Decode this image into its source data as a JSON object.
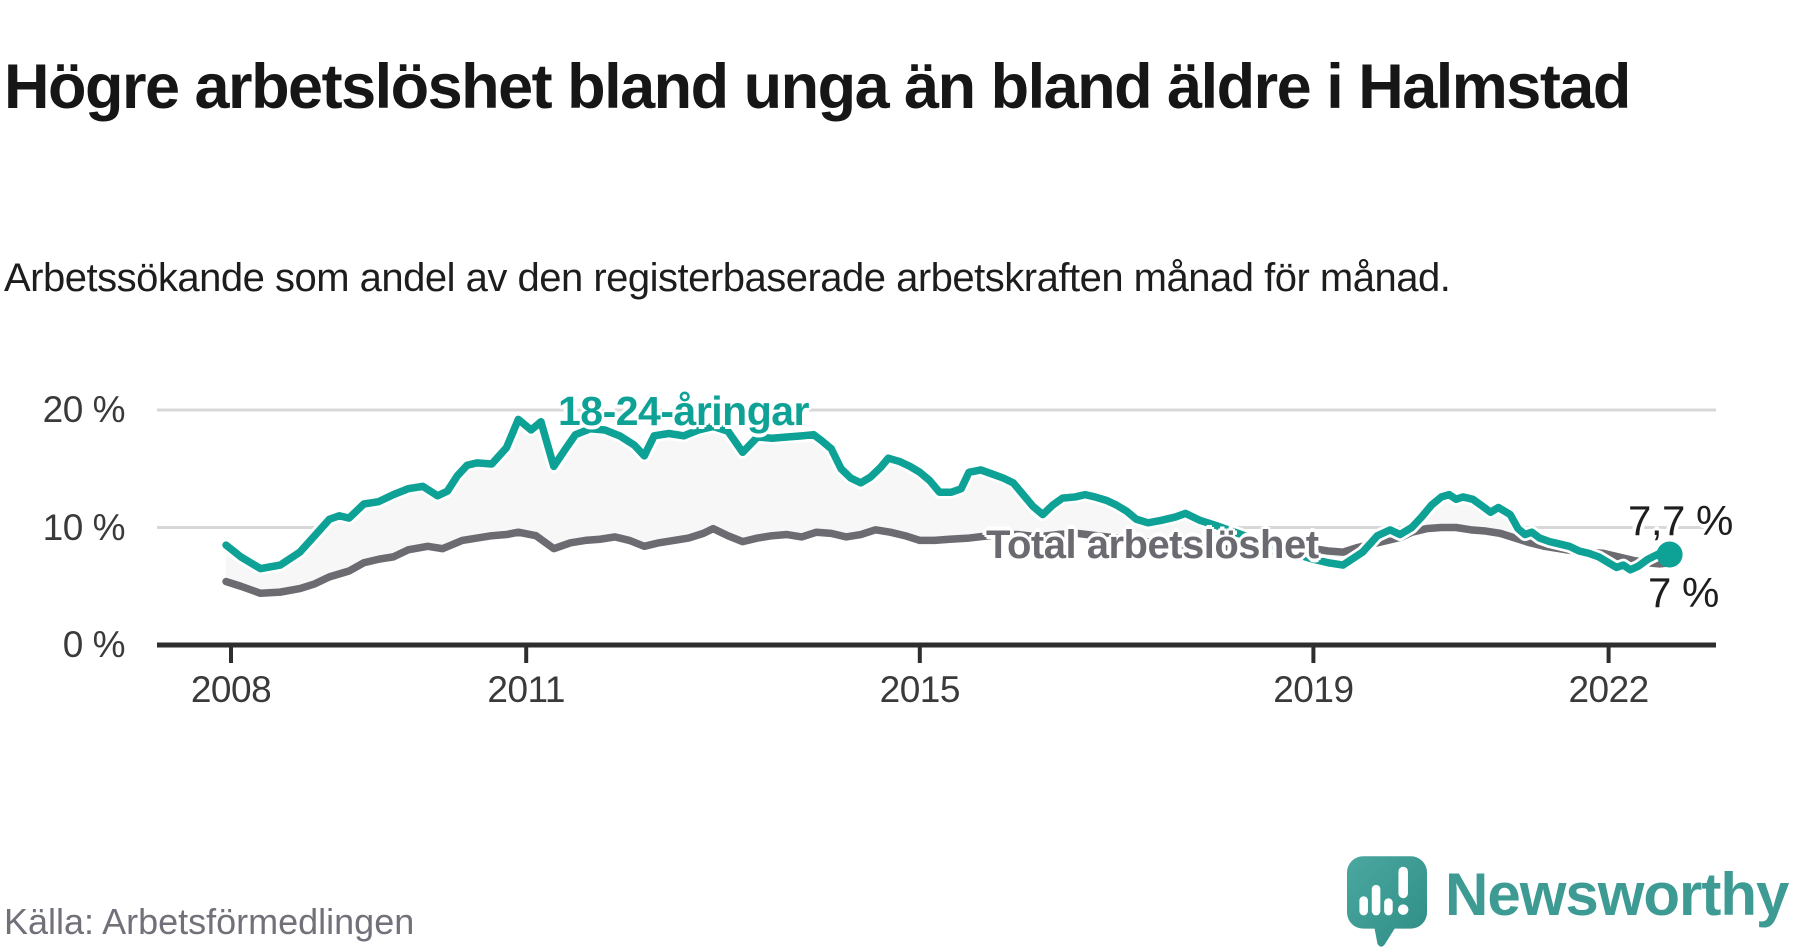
{
  "header": {
    "title": "Högre arbetslöshet bland unga än bland äldre i Halmstad",
    "subtitle": "Arbetssökande som andel av den registerbaserade arbetskraften månad för månad."
  },
  "footer": {
    "source": "Källa: Arbetsförmedlingen",
    "brand": "Newsworthy",
    "logo_icon": "speech-bubble-bar-chart-icon"
  },
  "colors": {
    "youth_line": "#0ea196",
    "total_line": "#6b6b71",
    "axis": "#2e2e2e",
    "gridline": "#d8d8d8",
    "area_fill": "#f7f7f7",
    "text_dark": "#161616",
    "text_gray": "#71717a",
    "brand_teal": "#3e9b94"
  },
  "chart_data": {
    "type": "line",
    "title": "Högre arbetslöshet bland unga än bland äldre i Halmstad",
    "subtitle": "Arbetssökande som andel av den registerbaserade arbetskraften månad för månad.",
    "unit": "%",
    "grid": "horizontal",
    "legend": "inline-labels",
    "area_fill_between_series": "#f7f7f7",
    "x_axis": {
      "ticks": [
        2008,
        2011,
        2015,
        2019,
        2022
      ],
      "tick_labels": [
        "2008",
        "2011",
        "2015",
        "2019",
        "2022"
      ],
      "range": [
        2007.7,
        2022.9
      ]
    },
    "y_axis": {
      "ticks": [
        0,
        10,
        20
      ],
      "tick_labels": [
        "0 %",
        "10 %",
        "20 %"
      ],
      "range": [
        0,
        22
      ]
    },
    "series": [
      {
        "name": "18-24-åringar",
        "color": "#0ea196",
        "end_label": "7,7 %",
        "end_value": 7.7,
        "points": [
          [
            2007.95,
            8.5
          ],
          [
            2008.1,
            7.5
          ],
          [
            2008.3,
            6.5
          ],
          [
            2008.5,
            6.8
          ],
          [
            2008.7,
            7.9
          ],
          [
            2008.85,
            9.3
          ],
          [
            2009.0,
            10.7
          ],
          [
            2009.1,
            11.0
          ],
          [
            2009.2,
            10.8
          ],
          [
            2009.35,
            12.0
          ],
          [
            2009.5,
            12.2
          ],
          [
            2009.65,
            12.8
          ],
          [
            2009.8,
            13.3
          ],
          [
            2009.95,
            13.5
          ],
          [
            2010.1,
            12.7
          ],
          [
            2010.2,
            13.1
          ],
          [
            2010.3,
            14.4
          ],
          [
            2010.4,
            15.3
          ],
          [
            2010.5,
            15.5
          ],
          [
            2010.65,
            15.4
          ],
          [
            2010.8,
            16.8
          ],
          [
            2010.92,
            19.2
          ],
          [
            2011.05,
            18.3
          ],
          [
            2011.15,
            19.0
          ],
          [
            2011.28,
            15.2
          ],
          [
            2011.4,
            16.7
          ],
          [
            2011.5,
            17.9
          ],
          [
            2011.65,
            18.4
          ],
          [
            2011.8,
            18.3
          ],
          [
            2011.95,
            17.8
          ],
          [
            2012.1,
            17.0
          ],
          [
            2012.2,
            16.1
          ],
          [
            2012.3,
            17.8
          ],
          [
            2012.45,
            18.0
          ],
          [
            2012.6,
            17.8
          ],
          [
            2012.75,
            18.3
          ],
          [
            2012.9,
            18.6
          ],
          [
            2013.05,
            18.2
          ],
          [
            2013.2,
            16.4
          ],
          [
            2013.35,
            17.7
          ],
          [
            2013.5,
            17.6
          ],
          [
            2013.65,
            17.7
          ],
          [
            2013.8,
            17.8
          ],
          [
            2013.92,
            17.9
          ],
          [
            2014.0,
            17.4
          ],
          [
            2014.1,
            16.7
          ],
          [
            2014.2,
            15.0
          ],
          [
            2014.3,
            14.2
          ],
          [
            2014.4,
            13.8
          ],
          [
            2014.5,
            14.3
          ],
          [
            2014.6,
            15.1
          ],
          [
            2014.68,
            15.9
          ],
          [
            2014.8,
            15.6
          ],
          [
            2014.9,
            15.2
          ],
          [
            2015.0,
            14.7
          ],
          [
            2015.1,
            14.0
          ],
          [
            2015.2,
            13.0
          ],
          [
            2015.32,
            13.0
          ],
          [
            2015.42,
            13.3
          ],
          [
            2015.5,
            14.7
          ],
          [
            2015.62,
            14.9
          ],
          [
            2015.72,
            14.6
          ],
          [
            2015.85,
            14.2
          ],
          [
            2015.95,
            13.8
          ],
          [
            2016.05,
            12.8
          ],
          [
            2016.15,
            11.8
          ],
          [
            2016.25,
            11.1
          ],
          [
            2016.35,
            11.9
          ],
          [
            2016.45,
            12.5
          ],
          [
            2016.58,
            12.6
          ],
          [
            2016.68,
            12.8
          ],
          [
            2016.78,
            12.6
          ],
          [
            2016.9,
            12.3
          ],
          [
            2017.0,
            11.9
          ],
          [
            2017.1,
            11.4
          ],
          [
            2017.2,
            10.7
          ],
          [
            2017.32,
            10.4
          ],
          [
            2017.45,
            10.6
          ],
          [
            2017.6,
            10.9
          ],
          [
            2017.7,
            11.2
          ],
          [
            2017.85,
            10.6
          ],
          [
            2018.0,
            10.2
          ],
          [
            2018.2,
            9.6
          ],
          [
            2018.4,
            9.0
          ],
          [
            2018.6,
            8.4
          ],
          [
            2018.8,
            7.8
          ],
          [
            2019.0,
            7.3
          ],
          [
            2019.15,
            7.0
          ],
          [
            2019.3,
            6.8
          ],
          [
            2019.5,
            7.9
          ],
          [
            2019.65,
            9.3
          ],
          [
            2019.78,
            9.8
          ],
          [
            2019.88,
            9.4
          ],
          [
            2020.0,
            10.0
          ],
          [
            2020.1,
            10.9
          ],
          [
            2020.2,
            11.9
          ],
          [
            2020.3,
            12.6
          ],
          [
            2020.38,
            12.8
          ],
          [
            2020.45,
            12.4
          ],
          [
            2020.52,
            12.6
          ],
          [
            2020.62,
            12.4
          ],
          [
            2020.72,
            11.8
          ],
          [
            2020.8,
            11.3
          ],
          [
            2020.88,
            11.7
          ],
          [
            2021.0,
            11.1
          ],
          [
            2021.08,
            9.9
          ],
          [
            2021.15,
            9.4
          ],
          [
            2021.22,
            9.6
          ],
          [
            2021.3,
            9.1
          ],
          [
            2021.4,
            8.8
          ],
          [
            2021.5,
            8.6
          ],
          [
            2021.6,
            8.4
          ],
          [
            2021.7,
            8.0
          ],
          [
            2021.8,
            7.8
          ],
          [
            2021.9,
            7.5
          ],
          [
            2022.0,
            7.0
          ],
          [
            2022.08,
            6.6
          ],
          [
            2022.15,
            6.8
          ],
          [
            2022.22,
            6.4
          ],
          [
            2022.3,
            6.7
          ],
          [
            2022.4,
            7.3
          ],
          [
            2022.52,
            7.8
          ],
          [
            2022.62,
            7.7
          ]
        ]
      },
      {
        "name": "Total arbetslöshet",
        "color": "#6b6b71",
        "end_label": "7 %",
        "end_value": 7.0,
        "points": [
          [
            2007.95,
            5.4
          ],
          [
            2008.1,
            5.0
          ],
          [
            2008.3,
            4.4
          ],
          [
            2008.5,
            4.5
          ],
          [
            2008.7,
            4.8
          ],
          [
            2008.85,
            5.2
          ],
          [
            2009.0,
            5.8
          ],
          [
            2009.2,
            6.3
          ],
          [
            2009.35,
            7.0
          ],
          [
            2009.5,
            7.3
          ],
          [
            2009.65,
            7.5
          ],
          [
            2009.8,
            8.1
          ],
          [
            2010.0,
            8.4
          ],
          [
            2010.15,
            8.2
          ],
          [
            2010.35,
            8.9
          ],
          [
            2010.5,
            9.1
          ],
          [
            2010.65,
            9.3
          ],
          [
            2010.8,
            9.4
          ],
          [
            2010.92,
            9.6
          ],
          [
            2011.1,
            9.3
          ],
          [
            2011.28,
            8.2
          ],
          [
            2011.45,
            8.7
          ],
          [
            2011.6,
            8.9
          ],
          [
            2011.75,
            9.0
          ],
          [
            2011.9,
            9.2
          ],
          [
            2012.05,
            8.9
          ],
          [
            2012.2,
            8.4
          ],
          [
            2012.35,
            8.7
          ],
          [
            2012.5,
            8.9
          ],
          [
            2012.65,
            9.1
          ],
          [
            2012.8,
            9.5
          ],
          [
            2012.9,
            9.9
          ],
          [
            2013.05,
            9.3
          ],
          [
            2013.2,
            8.8
          ],
          [
            2013.35,
            9.1
          ],
          [
            2013.5,
            9.3
          ],
          [
            2013.65,
            9.4
          ],
          [
            2013.8,
            9.2
          ],
          [
            2013.95,
            9.6
          ],
          [
            2014.1,
            9.5
          ],
          [
            2014.25,
            9.2
          ],
          [
            2014.4,
            9.4
          ],
          [
            2014.55,
            9.8
          ],
          [
            2014.7,
            9.6
          ],
          [
            2014.85,
            9.3
          ],
          [
            2015.0,
            8.9
          ],
          [
            2015.15,
            8.9
          ],
          [
            2015.3,
            9.0
          ],
          [
            2015.5,
            9.1
          ],
          [
            2015.7,
            9.3
          ],
          [
            2015.85,
            9.4
          ],
          [
            2016.0,
            9.4
          ],
          [
            2016.2,
            9.2
          ],
          [
            2016.4,
            9.4
          ],
          [
            2016.6,
            9.5
          ],
          [
            2016.8,
            9.3
          ],
          [
            2017.0,
            9.1
          ],
          [
            2017.2,
            8.9
          ],
          [
            2017.4,
            8.7
          ],
          [
            2017.6,
            8.6
          ],
          [
            2017.8,
            8.4
          ],
          [
            2018.0,
            8.3
          ],
          [
            2018.2,
            8.1
          ],
          [
            2018.4,
            8.0
          ],
          [
            2018.6,
            8.0
          ],
          [
            2018.8,
            8.1
          ],
          [
            2019.0,
            8.2
          ],
          [
            2019.15,
            8.0
          ],
          [
            2019.3,
            7.9
          ],
          [
            2019.45,
            8.3
          ],
          [
            2019.6,
            8.6
          ],
          [
            2019.75,
            8.9
          ],
          [
            2019.9,
            9.2
          ],
          [
            2020.0,
            9.6
          ],
          [
            2020.15,
            9.9
          ],
          [
            2020.3,
            10.0
          ],
          [
            2020.45,
            10.0
          ],
          [
            2020.6,
            9.8
          ],
          [
            2020.75,
            9.7
          ],
          [
            2020.9,
            9.5
          ],
          [
            2021.05,
            9.1
          ],
          [
            2021.2,
            8.7
          ],
          [
            2021.35,
            8.4
          ],
          [
            2021.5,
            8.2
          ],
          [
            2021.65,
            8.0
          ],
          [
            2021.8,
            7.9
          ],
          [
            2021.95,
            7.8
          ],
          [
            2022.1,
            7.5
          ],
          [
            2022.25,
            7.2
          ],
          [
            2022.4,
            7.0
          ],
          [
            2022.52,
            6.9
          ],
          [
            2022.62,
            7.0
          ]
        ]
      }
    ]
  }
}
